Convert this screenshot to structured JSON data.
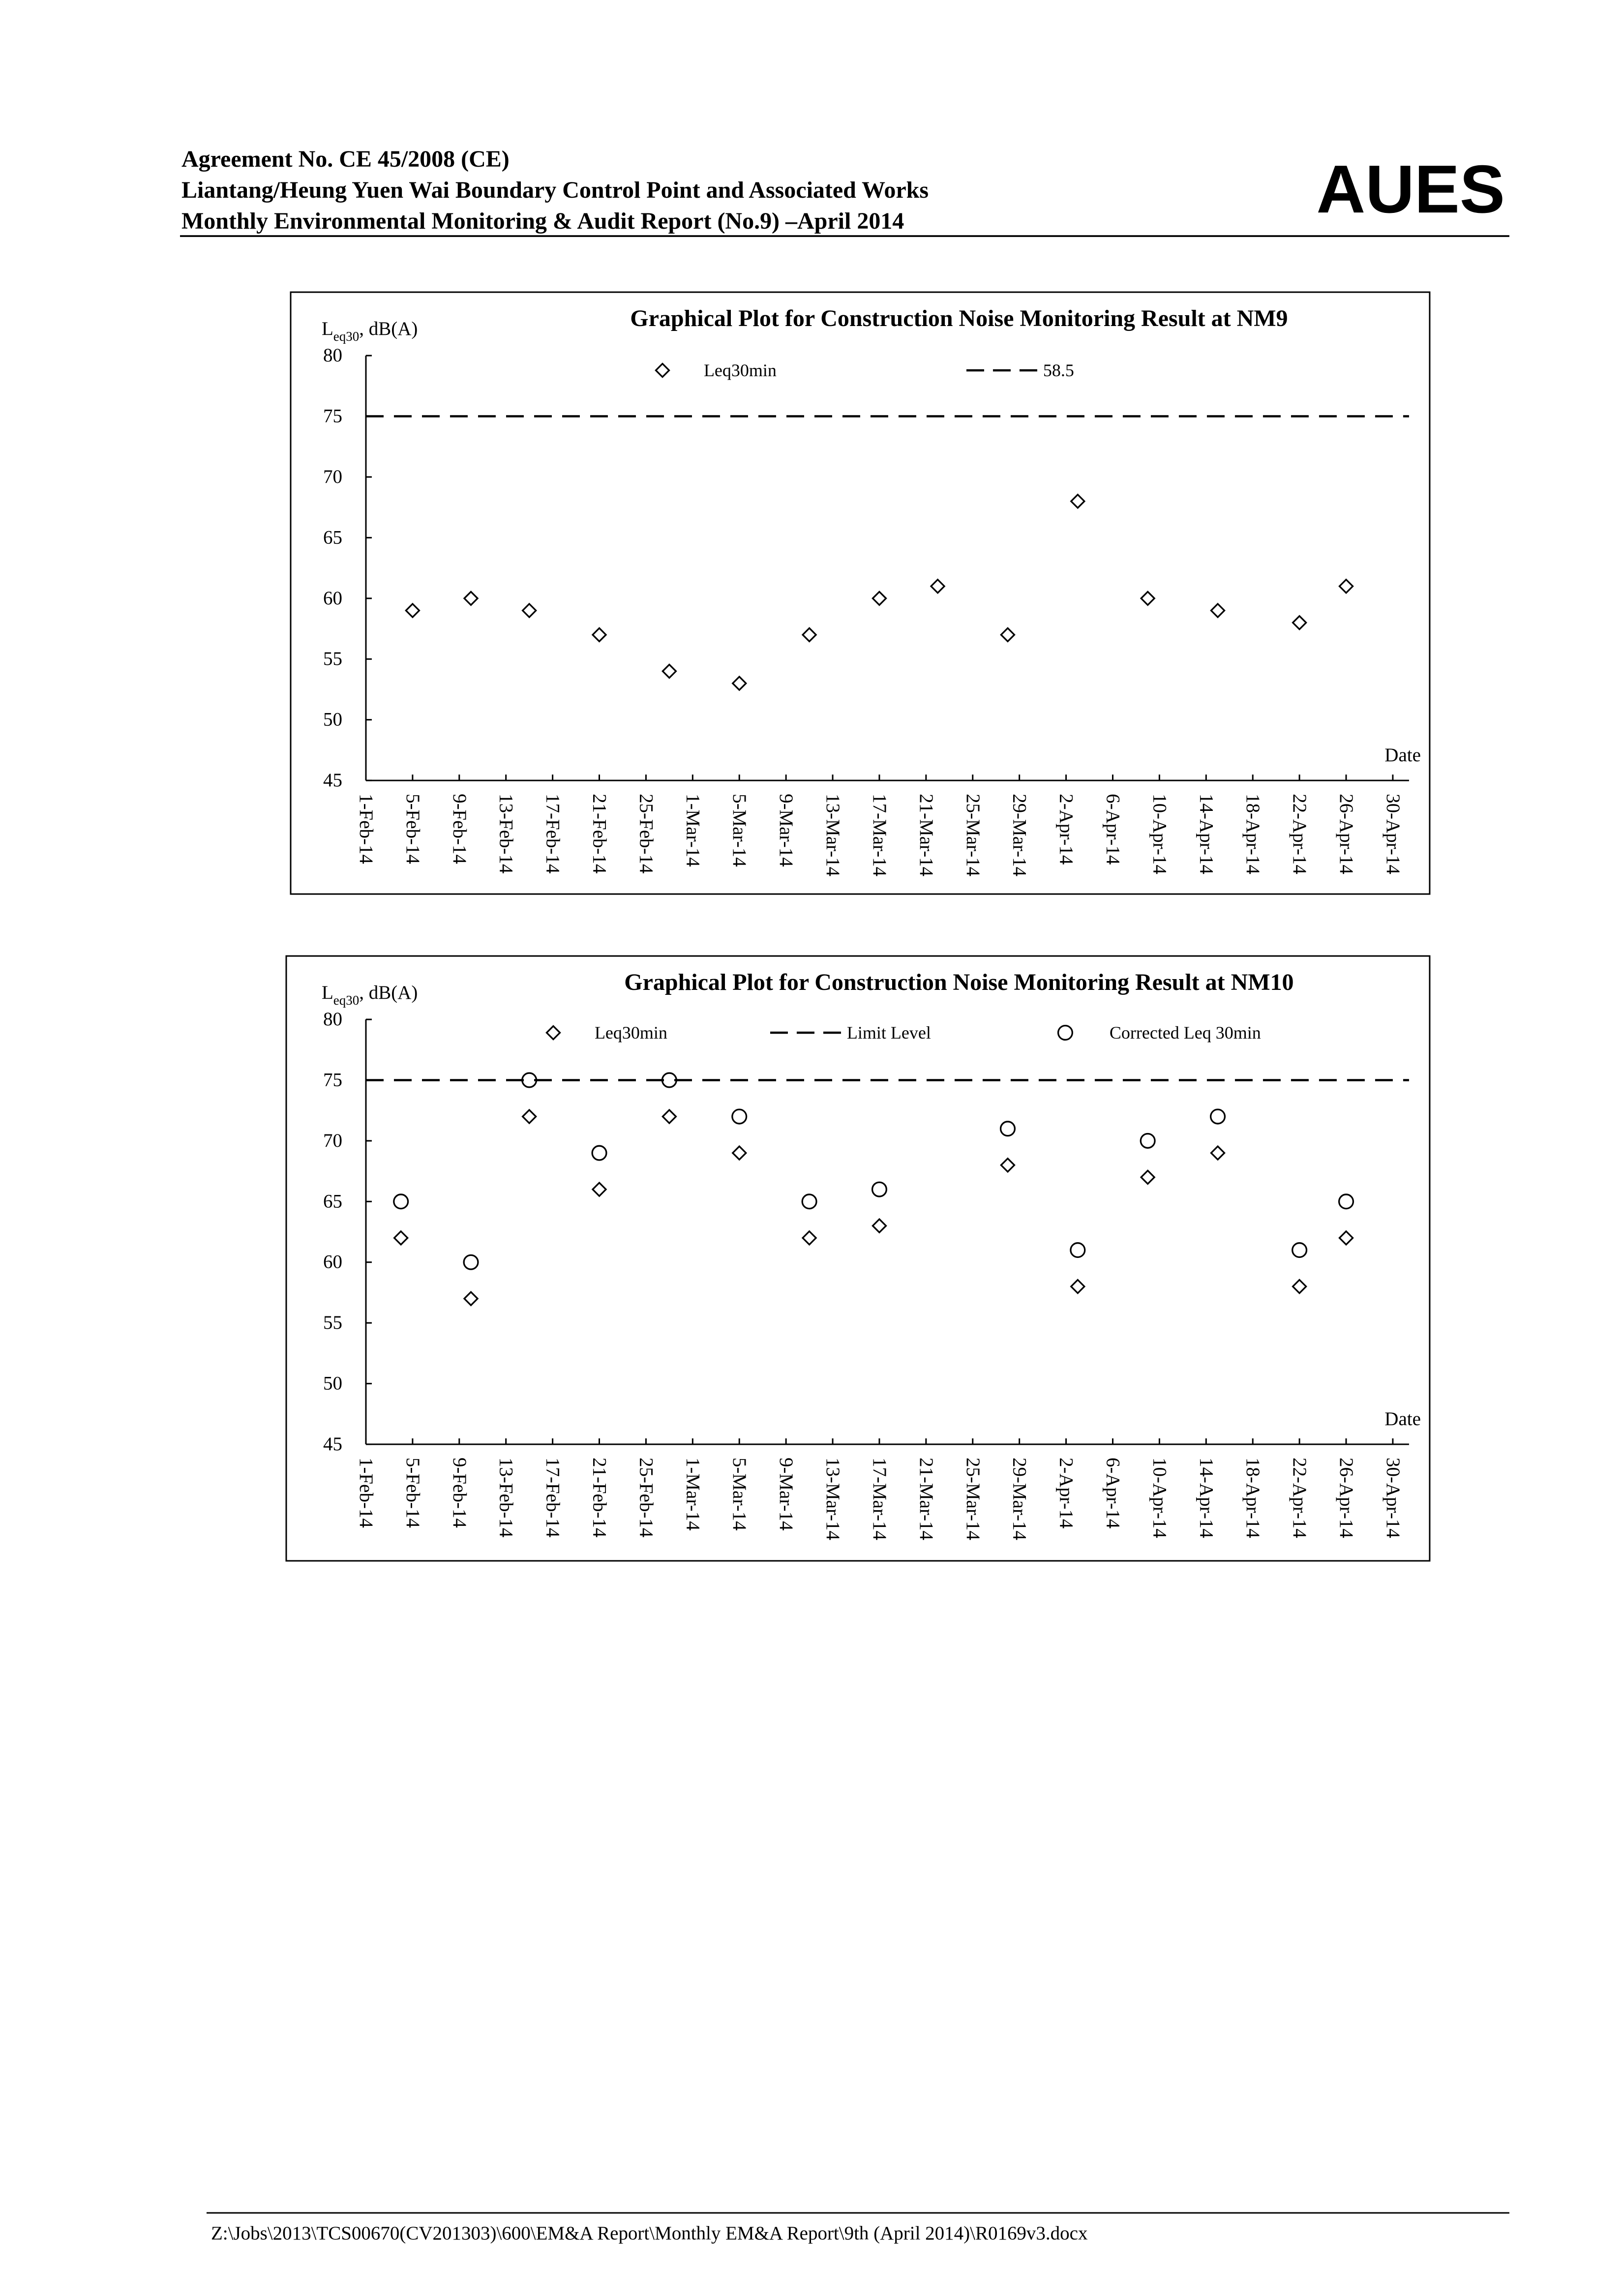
{
  "header": {
    "lines": [
      "Agreement No. CE 45/2008 (CE)",
      "Liantang/Heung Yuen Wai Boundary Control Point and Associated Works",
      "Monthly Environmental Monitoring & Audit Report (No.9) –April 2014"
    ],
    "logo": "AUES"
  },
  "footer": "Z:\\Jobs\\2013\\TCS00670(CV201303)\\600\\EM&A Report\\Monthly EM&A Report\\9th (April 2014)\\R0169v3.docx",
  "chart_data": [
    {
      "type": "scatter",
      "title": "Graphical Plot for Construction Noise Monitoring Result at NM9",
      "y_label": {
        "main": "L",
        "sub": "eq30",
        "rest": ", dB(A)"
      },
      "x_label": "Date",
      "xlim": [
        "1-Feb-14",
        "30-Apr-14"
      ],
      "xticks": [
        "1-Feb-14",
        "5-Feb-14",
        "9-Feb-14",
        "13-Feb-14",
        "17-Feb-14",
        "21-Feb-14",
        "25-Feb-14",
        "1-Mar-14",
        "5-Mar-14",
        "9-Mar-14",
        "13-Mar-14",
        "17-Mar-14",
        "21-Mar-14",
        "25-Mar-14",
        "29-Mar-14",
        "2-Apr-14",
        "6-Apr-14",
        "10-Apr-14",
        "14-Apr-14",
        "18-Apr-14",
        "22-Apr-14",
        "26-Apr-14",
        "30-Apr-14"
      ],
      "ylim": [
        45,
        80
      ],
      "yticks": [
        45,
        50,
        55,
        60,
        65,
        70,
        75,
        80
      ],
      "limit": 75,
      "limit_name": "58.5",
      "x": [
        "5-Feb-14",
        "10-Feb-14",
        "15-Feb-14",
        "21-Feb-14",
        "27-Feb-14",
        "5-Mar-14",
        "11-Mar-14",
        "17-Mar-14",
        "22-Mar-14",
        "28-Mar-14",
        "3-Apr-14",
        "9-Apr-14",
        "15-Apr-14",
        "22-Apr-14",
        "26-Apr-14"
      ],
      "series": [
        {
          "name": "Leq30min",
          "marker": "diamond",
          "color": "#000000",
          "values": [
            59,
            60,
            59,
            57,
            54,
            53,
            57,
            60,
            61,
            57,
            68,
            60,
            59,
            58,
            61
          ]
        }
      ]
    },
    {
      "type": "scatter",
      "title": "Graphical Plot for Construction Noise Monitoring Result at NM10",
      "y_label": {
        "main": "L",
        "sub": "eq30",
        "rest": ", dB(A)"
      },
      "x_label": "Date",
      "xlim": [
        "1-Feb-14",
        "30-Apr-14"
      ],
      "xticks": [
        "1-Feb-14",
        "5-Feb-14",
        "9-Feb-14",
        "13-Feb-14",
        "17-Feb-14",
        "21-Feb-14",
        "25-Feb-14",
        "1-Mar-14",
        "5-Mar-14",
        "9-Mar-14",
        "13-Mar-14",
        "17-Mar-14",
        "21-Mar-14",
        "25-Mar-14",
        "29-Mar-14",
        "2-Apr-14",
        "6-Apr-14",
        "10-Apr-14",
        "14-Apr-14",
        "18-Apr-14",
        "22-Apr-14",
        "26-Apr-14",
        "30-Apr-14"
      ],
      "ylim": [
        45,
        80
      ],
      "yticks": [
        45,
        50,
        55,
        60,
        65,
        70,
        75,
        80
      ],
      "limit": 75,
      "limit_name": "Limit Level",
      "x": [
        "4-Feb-14",
        "10-Feb-14",
        "15-Feb-14",
        "21-Feb-14",
        "27-Feb-14",
        "5-Mar-14",
        "11-Mar-14",
        "17-Mar-14",
        "28-Mar-14",
        "3-Apr-14",
        "9-Apr-14",
        "15-Apr-14",
        "22-Apr-14",
        "26-Apr-14"
      ],
      "series": [
        {
          "name": "Leq30min",
          "marker": "diamond",
          "color": "#000000",
          "values": [
            62,
            57,
            72,
            66,
            72,
            69,
            62,
            63,
            68,
            58,
            67,
            69,
            58,
            62
          ]
        },
        {
          "name": "Corrected Leq 30min",
          "marker": "circle",
          "color": "#000000",
          "values": [
            65,
            60,
            75,
            69,
            75,
            72,
            65,
            66,
            71,
            61,
            70,
            72,
            61,
            65
          ]
        }
      ]
    }
  ]
}
